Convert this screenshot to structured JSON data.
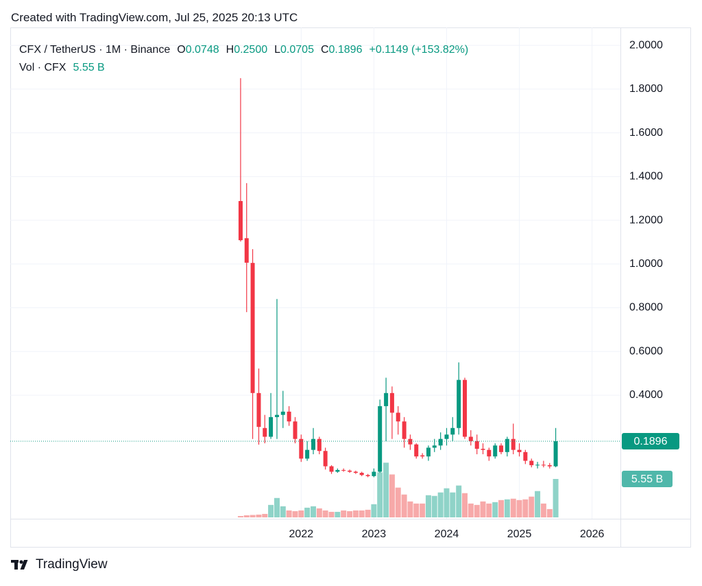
{
  "header": {
    "created": "Created with TradingView.com, Jul 25, 2025 20:13 UTC",
    "logo_text": "TradingView"
  },
  "chart_data": {
    "type": "candlestick",
    "symbol": "CFX / TetherUS · 1M · Binance",
    "legend_keys": {
      "open": "O",
      "high": "H",
      "low": "L",
      "close": "C"
    },
    "last_labels": {
      "open": "0.0748",
      "high": "0.2500",
      "low": "0.0705",
      "close": "0.1896",
      "change": "+0.1149 (+153.82%)"
    },
    "volume_title": "Vol · CFX",
    "volume_label": "5.55 B",
    "price_label": "0.1896",
    "x": [
      2021.167,
      2021.25,
      2021.333,
      2021.417,
      2021.5,
      2021.583,
      2021.667,
      2021.75,
      2021.833,
      2021.917,
      2022,
      2022.083,
      2022.167,
      2022.25,
      2022.333,
      2022.417,
      2022.5,
      2022.583,
      2022.667,
      2022.75,
      2022.833,
      2022.917,
      2023,
      2023.083,
      2023.167,
      2023.25,
      2023.333,
      2023.417,
      2023.5,
      2023.583,
      2023.667,
      2023.75,
      2023.833,
      2023.917,
      2024,
      2024.083,
      2024.167,
      2024.25,
      2024.333,
      2024.417,
      2024.5,
      2024.583,
      2024.667,
      2024.75,
      2024.833,
      2024.917,
      2025,
      2025.083,
      2025.167,
      2025.25,
      2025.333,
      2025.417,
      2025.5
    ],
    "open": [
      1.288,
      1.118,
      1.005,
      0.41,
      0.25,
      0.21,
      0.3,
      0.31,
      0.325,
      0.28,
      0.2,
      0.11,
      0.15,
      0.2,
      0.145,
      0.075,
      0.05,
      0.058,
      0.055,
      0.05,
      0.045,
      0.035,
      0.03,
      0.05,
      0.35,
      0.41,
      0.32,
      0.28,
      0.2,
      0.175,
      0.125,
      0.12,
      0.16,
      0.17,
      0.2,
      0.22,
      0.25,
      0.47,
      0.21,
      0.19,
      0.155,
      0.15,
      0.12,
      0.17,
      0.14,
      0.2,
      0.15,
      0.14,
      0.1,
      0.08,
      0.082,
      0.08,
      0.0748
    ],
    "high": [
      1.85,
      1.37,
      1.068,
      0.522,
      0.31,
      0.41,
      0.84,
      0.42,
      0.35,
      0.3,
      0.22,
      0.19,
      0.25,
      0.21,
      0.16,
      0.08,
      0.065,
      0.065,
      0.06,
      0.055,
      0.05,
      0.04,
      0.065,
      0.38,
      0.48,
      0.44,
      0.35,
      0.3,
      0.22,
      0.18,
      0.135,
      0.17,
      0.2,
      0.23,
      0.25,
      0.3,
      0.55,
      0.48,
      0.24,
      0.22,
      0.18,
      0.16,
      0.18,
      0.18,
      0.21,
      0.27,
      0.18,
      0.15,
      0.11,
      0.095,
      0.1,
      0.09,
      0.25
    ],
    "low": [
      1.103,
      0.78,
      0.2,
      0.174,
      0.18,
      0.2,
      0.2,
      0.25,
      0.26,
      0.18,
      0.095,
      0.1,
      0.13,
      0.13,
      0.06,
      0.04,
      0.045,
      0.05,
      0.045,
      0.04,
      0.03,
      0.025,
      0.025,
      0.045,
      0.19,
      0.2,
      0.22,
      0.16,
      0.15,
      0.11,
      0.11,
      0.1,
      0.14,
      0.15,
      0.17,
      0.19,
      0.22,
      0.2,
      0.17,
      0.13,
      0.13,
      0.1,
      0.11,
      0.13,
      0.12,
      0.13,
      0.12,
      0.085,
      0.07,
      0.065,
      0.07,
      0.065,
      0.0705
    ],
    "close": [
      1.109,
      1.006,
      0.41,
      0.255,
      0.21,
      0.3,
      0.31,
      0.325,
      0.28,
      0.2,
      0.11,
      0.15,
      0.2,
      0.145,
      0.075,
      0.05,
      0.058,
      0.055,
      0.05,
      0.045,
      0.035,
      0.03,
      0.05,
      0.35,
      0.41,
      0.32,
      0.28,
      0.2,
      0.175,
      0.12,
      0.12,
      0.16,
      0.17,
      0.2,
      0.22,
      0.25,
      0.47,
      0.21,
      0.19,
      0.155,
      0.15,
      0.12,
      0.17,
      0.14,
      0.2,
      0.15,
      0.14,
      0.1,
      0.08,
      0.082,
      0.08,
      0.0748,
      0.1896
    ],
    "volume": [
      0.2,
      0.3,
      0.35,
      0.4,
      0.5,
      1.8,
      2.8,
      1.6,
      1.0,
      0.9,
      1.0,
      1.4,
      1.6,
      1.3,
      1.0,
      0.8,
      0.8,
      1.0,
      0.9,
      1.0,
      1.0,
      1.1,
      1.9,
      6.5,
      7.9,
      6.2,
      4.3,
      3.3,
      2.3,
      2.0,
      2.0,
      3.2,
      3.1,
      3.6,
      4.2,
      3.6,
      4.6,
      3.5,
      2.0,
      1.8,
      2.3,
      2.0,
      2.2,
      2.5,
      2.6,
      2.7,
      2.5,
      2.6,
      3.0,
      3.8,
      2.0,
      1.2,
      5.55
    ],
    "xlim": [
      2018,
      2026.39
    ],
    "xticks": [
      2022,
      2023,
      2024,
      2025,
      2026
    ],
    "ylim": [
      -0.165,
      2.082
    ],
    "yticks": [
      {
        "value": 0.4,
        "label": "0.4000"
      },
      {
        "value": 0.6,
        "label": "0.6000"
      },
      {
        "value": 0.8,
        "label": "0.8000"
      },
      {
        "value": 1.0,
        "label": "1.0000"
      },
      {
        "value": 1.2,
        "label": "1.2000"
      },
      {
        "value": 1.4,
        "label": "1.4000"
      },
      {
        "value": 1.6,
        "label": "1.6000"
      },
      {
        "value": 1.8,
        "label": "1.8000"
      },
      {
        "value": 2.0,
        "label": "2.0000"
      }
    ],
    "volume_lim": [
      0,
      11
    ],
    "grid": true,
    "up_color": "#089981",
    "down_color": "#f23645",
    "volume_up_color": "#8fd3c8",
    "volume_down_color": "#f7a9a9",
    "volume_label_color": "#4fb7aa"
  }
}
